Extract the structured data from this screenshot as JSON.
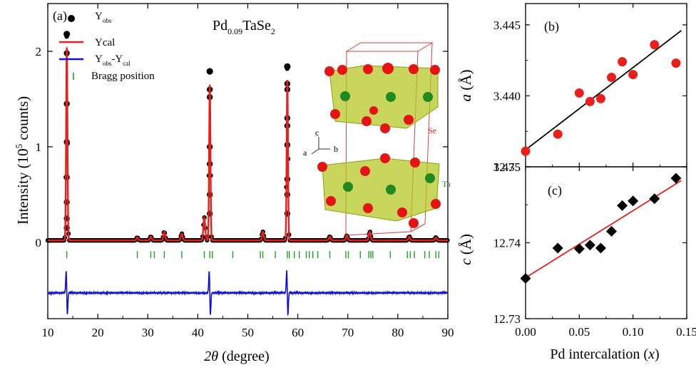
{
  "chart_data": [
    {
      "panel_label": "(a)",
      "type": "line",
      "title_parts": {
        "base": "Pd",
        "sub1": "0.09",
        "mid": "TaSe",
        "sub2": "2"
      },
      "xlabel": {
        "theta_symbol": "2θ",
        "rest": " (degree)"
      },
      "ylabel": {
        "pre": "Intensity (10",
        "sup": "5",
        "post": " counts)"
      },
      "xlim": [
        10,
        90
      ],
      "ylim": [
        -0.8,
        2.5
      ],
      "xticks": [
        "10",
        "20",
        "30",
        "40",
        "50",
        "60",
        "70",
        "80",
        "90"
      ],
      "yticks": [
        "0",
        "1",
        "2"
      ],
      "legend": [
        {
          "kind": "marker",
          "base": "Y",
          "sub": "obs"
        },
        {
          "kind": "line",
          "color": "#e8201c",
          "text": "Ycal"
        },
        {
          "kind": "line",
          "color": "#1010d8",
          "base1": "Y",
          "sub1": "obs",
          "mid": "-Y",
          "sub2": "cal"
        },
        {
          "kind": "bragg",
          "color": "#22a022",
          "text": "Bragg position"
        }
      ],
      "colors": {
        "observed": "#000000",
        "calculated": "#e8201c",
        "difference": "#1010d8",
        "bragg": "#22a022"
      },
      "peaks": [
        {
          "x": 13.8,
          "y": 2.18,
          "tail": [
            1.98,
            1.45,
            1.05,
            0.68,
            0.42,
            0.25,
            0.15
          ]
        },
        {
          "x": 42.4,
          "y": 1.79,
          "tail": [
            1.6,
            1.52,
            1.0,
            0.82,
            0.5,
            0.3
          ]
        },
        {
          "x": 57.9,
          "y": 1.84,
          "tail": [
            1.66,
            1.6,
            1.3,
            1.22,
            1.02,
            0.66,
            0.5,
            0.3
          ]
        }
      ],
      "minor_peaks": [
        {
          "x": 27.9,
          "y": 0.03
        },
        {
          "x": 30.6,
          "y": 0.04
        },
        {
          "x": 33.3,
          "y": 0.09
        },
        {
          "x": 36.8,
          "y": 0.07
        },
        {
          "x": 41.3,
          "y": 0.24
        },
        {
          "x": 53.0,
          "y": 0.09
        },
        {
          "x": 66.4,
          "y": 0.04
        },
        {
          "x": 69.8,
          "y": 0.05
        },
        {
          "x": 74.4,
          "y": 0.09
        },
        {
          "x": 82.3,
          "y": 0.04
        },
        {
          "x": 87.6,
          "y": 0.03
        }
      ],
      "baseline": 0.02,
      "bragg_y": -0.13,
      "diff_offset": -0.53,
      "bragg_positions": [
        13.8,
        27.9,
        30.6,
        31.3,
        33.3,
        36.8,
        41.3,
        42.4,
        42.9,
        47.0,
        52.5,
        53.0,
        55.5,
        57.9,
        58.3,
        59.3,
        60.3,
        61.7,
        62.3,
        63.0,
        64.0,
        66.4,
        69.6,
        70.1,
        72.5,
        74.2,
        74.6,
        75.0,
        78.5,
        81.9,
        82.5,
        83.3,
        85.4,
        86.3,
        87.6,
        88.2
      ],
      "inset_labels": {
        "c": "c",
        "a": "a",
        "b": "b",
        "se": "Se",
        "ta": "Ta"
      }
    },
    {
      "panel_label": "(b)",
      "type": "scatter",
      "ylabel": {
        "var": "a",
        "unit": " (Å)"
      },
      "xlim": [
        0,
        0.15
      ],
      "ylim": [
        3.435,
        3.4465
      ],
      "yticks": [
        "3.435",
        "3.440",
        "3.445"
      ],
      "points": [
        {
          "x": 0.0,
          "y": 3.4361
        },
        {
          "x": 0.03,
          "y": 3.4373
        },
        {
          "x": 0.05,
          "y": 3.4402
        },
        {
          "x": 0.06,
          "y": 3.4396
        },
        {
          "x": 0.07,
          "y": 3.4398
        },
        {
          "x": 0.08,
          "y": 3.4413
        },
        {
          "x": 0.09,
          "y": 3.4424
        },
        {
          "x": 0.1,
          "y": 3.4415
        },
        {
          "x": 0.12,
          "y": 3.4436
        },
        {
          "x": 0.14,
          "y": 3.4423
        }
      ],
      "fit": {
        "x": [
          0.0,
          0.145
        ],
        "y": [
          3.4362,
          3.4446
        ],
        "color": "#000000"
      },
      "marker_color": "#e8201c"
    },
    {
      "panel_label": "(c)",
      "type": "scatter",
      "xlabel": {
        "pre": "Pd intercalation (",
        "var": "x",
        "post": ")"
      },
      "ylabel": {
        "var": "c",
        "unit": " (Å)"
      },
      "xlim": [
        0,
        0.15
      ],
      "ylim": [
        12.73,
        12.75
      ],
      "xticks": [
        "0.00",
        "0.05",
        "0.10",
        "0.15"
      ],
      "yticks": [
        "12.73",
        "12.74",
        "12.75"
      ],
      "points": [
        {
          "x": 0.0,
          "y": 12.7353
        },
        {
          "x": 0.03,
          "y": 12.7393
        },
        {
          "x": 0.05,
          "y": 12.7392
        },
        {
          "x": 0.06,
          "y": 12.7397
        },
        {
          "x": 0.07,
          "y": 12.7393
        },
        {
          "x": 0.08,
          "y": 12.7415
        },
        {
          "x": 0.09,
          "y": 12.7449
        },
        {
          "x": 0.1,
          "y": 12.7455
        },
        {
          "x": 0.12,
          "y": 12.7458
        },
        {
          "x": 0.14,
          "y": 12.7485
        }
      ],
      "fit": {
        "x": [
          0.0,
          0.145
        ],
        "y": [
          12.7354,
          12.7482
        ],
        "color": "#e8201c"
      },
      "marker_color": "#000000"
    }
  ]
}
